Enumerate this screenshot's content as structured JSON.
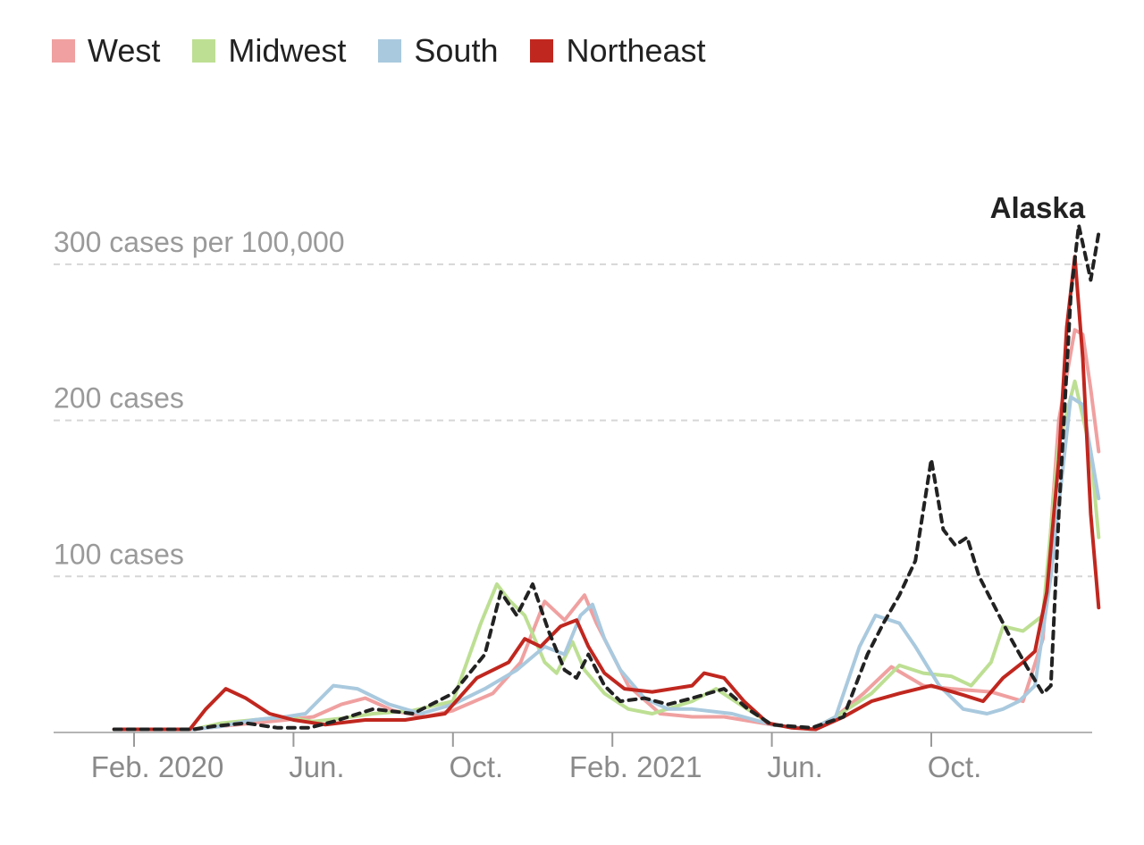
{
  "chart_data": {
    "type": "line",
    "title": "",
    "xlabel": "",
    "ylabel": "",
    "x_ticks": [
      "Feb. 2020",
      "Jun.",
      "Oct.",
      "Feb. 2021",
      "Jun.",
      "Oct."
    ],
    "x_tick_positions": [
      0,
      4,
      8,
      12,
      16,
      20
    ],
    "x_range": [
      -0.5,
      24.2
    ],
    "x_units": "months since Feb. 2020",
    "ylim": [
      0,
      330
    ],
    "y_gridlines": [
      {
        "value": 100,
        "label": "100 cases"
      },
      {
        "value": 200,
        "label": "200 cases"
      },
      {
        "value": 300,
        "label": "300 cases per 100,000"
      }
    ],
    "grid": true,
    "legend_position": "top-left",
    "annotations": [
      {
        "text": "Alaska",
        "x": 23.5,
        "y": 325
      }
    ],
    "series": [
      {
        "name": "West",
        "color": "#f0a0a0",
        "dash": false,
        "x": [
          -0.5,
          1.5,
          2.2,
          3.0,
          3.8,
          4.5,
          5.2,
          5.8,
          6.5,
          7.3,
          8.0,
          9.0,
          9.7,
          10.3,
          10.8,
          11.3,
          11.6,
          12.0,
          12.4,
          13.2,
          14.0,
          14.8,
          16.0,
          17.0,
          17.6,
          18.3,
          19.0,
          19.8,
          20.5,
          21.5,
          22.3,
          22.8,
          23.2,
          23.6,
          23.8,
          24.0,
          24.2
        ],
        "y": [
          2,
          2,
          4,
          6,
          8,
          10,
          18,
          22,
          14,
          10,
          14,
          25,
          45,
          84,
          72,
          88,
          70,
          50,
          30,
          12,
          10,
          10,
          5,
          2,
          10,
          25,
          42,
          30,
          28,
          26,
          20,
          60,
          200,
          258,
          255,
          220,
          180
        ]
      },
      {
        "name": "Midwest",
        "color": "#bddf93",
        "dash": false,
        "x": [
          -0.5,
          1.5,
          2.2,
          3.0,
          3.8,
          4.5,
          5.2,
          6.0,
          7.0,
          8.0,
          8.7,
          9.1,
          9.4,
          9.8,
          10.3,
          10.6,
          11.0,
          11.3,
          11.8,
          12.4,
          13.0,
          14.0,
          14.6,
          15.2,
          16.0,
          17.0,
          17.6,
          18.5,
          19.2,
          19.8,
          20.5,
          21.0,
          21.5,
          21.8,
          22.3,
          22.8,
          23.2,
          23.6,
          24.0,
          24.2
        ],
        "y": [
          2,
          2,
          6,
          8,
          10,
          7,
          9,
          12,
          14,
          20,
          70,
          95,
          85,
          75,
          45,
          38,
          58,
          40,
          25,
          15,
          12,
          20,
          28,
          18,
          5,
          2,
          10,
          25,
          43,
          38,
          36,
          30,
          45,
          68,
          65,
          75,
          185,
          225,
          180,
          125
        ]
      },
      {
        "name": "South",
        "color": "#a9c9de",
        "dash": false,
        "x": [
          -0.5,
          1.5,
          2.2,
          3.0,
          3.8,
          4.3,
          5.0,
          5.6,
          6.4,
          7.2,
          8.0,
          8.8,
          9.6,
          10.3,
          10.8,
          11.2,
          11.5,
          11.8,
          12.2,
          12.8,
          13.4,
          14.0,
          15.0,
          16.0,
          17.0,
          17.6,
          18.2,
          18.6,
          19.2,
          19.6,
          20.2,
          20.8,
          21.4,
          21.8,
          22.2,
          22.6,
          23.0,
          23.5,
          23.8,
          24.2
        ],
        "y": [
          2,
          2,
          4,
          8,
          10,
          12,
          30,
          28,
          18,
          12,
          18,
          28,
          40,
          55,
          50,
          75,
          82,
          60,
          40,
          22,
          15,
          15,
          12,
          5,
          2,
          10,
          55,
          75,
          70,
          55,
          30,
          15,
          12,
          15,
          20,
          30,
          100,
          215,
          210,
          150
        ]
      },
      {
        "name": "Northeast",
        "color": "#c0271f",
        "dash": false,
        "x": [
          -0.5,
          1.4,
          1.8,
          2.3,
          2.8,
          3.4,
          4.0,
          4.8,
          5.8,
          6.8,
          7.8,
          8.6,
          9.4,
          9.8,
          10.2,
          10.7,
          11.1,
          11.4,
          11.8,
          12.3,
          13.0,
          14.0,
          14.3,
          14.8,
          15.3,
          15.9,
          16.5,
          17.1,
          17.8,
          18.5,
          19.2,
          20.0,
          20.8,
          21.3,
          21.8,
          22.3,
          22.6,
          22.9,
          23.2,
          23.4,
          23.6,
          23.8,
          24.0,
          24.2
        ],
        "y": [
          2,
          2,
          15,
          28,
          22,
          12,
          8,
          5,
          8,
          8,
          12,
          35,
          45,
          60,
          55,
          68,
          72,
          55,
          38,
          28,
          26,
          30,
          38,
          35,
          20,
          6,
          3,
          2,
          10,
          20,
          25,
          30,
          24,
          20,
          35,
          45,
          52,
          90,
          175,
          260,
          305,
          240,
          140,
          80
        ]
      },
      {
        "name": "Alaska",
        "color": "#222222",
        "dash": true,
        "x": [
          -0.5,
          1.5,
          2.0,
          2.8,
          3.6,
          4.4,
          5.0,
          6.0,
          7.0,
          8.0,
          8.8,
          9.2,
          9.6,
          10.0,
          10.4,
          10.8,
          11.1,
          11.4,
          11.8,
          12.2,
          12.8,
          13.4,
          14.0,
          14.8,
          15.4,
          16.0,
          17.0,
          17.8,
          18.4,
          18.8,
          19.2,
          19.6,
          20.0,
          20.3,
          20.6,
          20.9,
          21.2,
          21.6,
          22.0,
          22.4,
          22.8,
          23.0,
          23.2,
          23.5,
          23.7,
          24.0,
          24.2
        ],
        "y": [
          2,
          2,
          4,
          6,
          3,
          3,
          7,
          15,
          12,
          25,
          50,
          90,
          75,
          95,
          65,
          40,
          35,
          50,
          30,
          20,
          22,
          18,
          22,
          28,
          15,
          5,
          3,
          10,
          50,
          70,
          88,
          110,
          175,
          130,
          120,
          125,
          100,
          80,
          60,
          42,
          25,
          30,
          140,
          280,
          325,
          290,
          320
        ]
      }
    ]
  }
}
